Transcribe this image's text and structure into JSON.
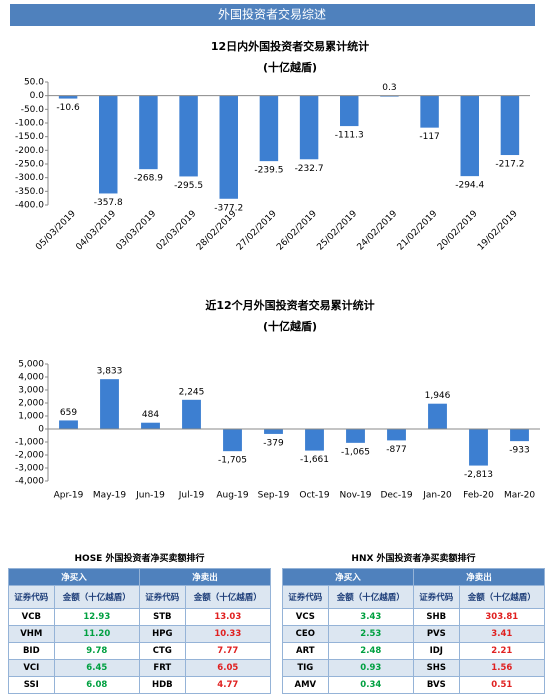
{
  "header": {
    "title": "外国投资者交易综述"
  },
  "chart_data": [
    {
      "type": "bar",
      "title": "12日内外国投资者交易累计统计",
      "subtitle": "(十亿越盾)",
      "categories": [
        "05/03/2019",
        "04/03/2019",
        "03/03/2019",
        "02/03/2019",
        "28/02/2019",
        "27/02/2019",
        "26/02/2019",
        "25/02/2019",
        "24/02/2019",
        "21/02/2019",
        "20/02/2019",
        "19/02/2019"
      ],
      "values": [
        -10.6,
        -357.8,
        -268.9,
        -295.5,
        -377.2,
        -239.5,
        -232.7,
        -111.3,
        0.3,
        -117.0,
        -294.4,
        -217.2
      ],
      "color": "#3d7fd1",
      "ylim": [
        -400,
        50
      ],
      "yticks": [
        {
          "value": 50,
          "label": "50.0"
        },
        {
          "value": 0,
          "label": "0.0"
        },
        {
          "value": -50,
          "label": "-50.0"
        },
        {
          "value": -100,
          "label": "-100.0"
        },
        {
          "value": -150,
          "label": "-150.0"
        },
        {
          "value": -200,
          "label": "-200.0"
        },
        {
          "value": -250,
          "label": "-250.0"
        },
        {
          "value": -300,
          "label": "-300.0"
        },
        {
          "value": -350,
          "label": "-350.0"
        },
        {
          "value": -400,
          "label": "-400.0"
        }
      ],
      "grid": false
    },
    {
      "type": "bar",
      "title": "近12个月外国投资者交易累计统计",
      "subtitle": "(十亿越盾)",
      "categories": [
        "Apr-19",
        "May-19",
        "Jun-19",
        "Jul-19",
        "Aug-19",
        "Sep-19",
        "Oct-19",
        "Nov-19",
        "Dec-19",
        "Jan-20",
        "Feb-20",
        "Mar-20"
      ],
      "values": [
        659,
        3833,
        484,
        2245,
        -1705,
        -379,
        -1661,
        -1065,
        -877,
        1946,
        -2813,
        -933
      ],
      "value_labels": [
        "659",
        "3,833",
        "484",
        "2,245",
        "-1,705",
        "-379",
        "-1,661",
        "-1,065",
        "-877",
        "1,946",
        "-2,813",
        "-933"
      ],
      "color": "#3d7fd1",
      "ylim": [
        -4000,
        5000
      ],
      "yticks": [
        {
          "value": 5000,
          "label": "5,000"
        },
        {
          "value": 4000,
          "label": "4,000"
        },
        {
          "value": 3000,
          "label": "3,000"
        },
        {
          "value": 2000,
          "label": "2,000"
        },
        {
          "value": 1000,
          "label": "1,000"
        },
        0,
        {
          "value": -1000,
          "label": "-1,000"
        },
        {
          "value": -2000,
          "label": "-2,000"
        },
        {
          "value": -3000,
          "label": "-3,000"
        },
        {
          "value": -4000,
          "label": "-4,000"
        }
      ],
      "grid": false
    }
  ],
  "tables": [
    {
      "title": "HOSE 外国投资者净买卖额排行",
      "buy_header": "净买入",
      "sell_header": "净卖出",
      "columns": [
        "证券代码",
        "金额（十亿越盾）",
        "证券代码",
        "金额（十亿越盾）"
      ],
      "rows": [
        [
          "VCB",
          "12.93",
          "STB",
          "13.03"
        ],
        [
          "VHM",
          "11.20",
          "HPG",
          "10.33"
        ],
        [
          "BID",
          "9.78",
          "CTG",
          "7.77"
        ],
        [
          "VCI",
          "6.45",
          "FRT",
          "6.05"
        ],
        [
          "SSI",
          "6.08",
          "HDB",
          "4.77"
        ]
      ]
    },
    {
      "title": "HNX 外国投资者净买卖额排行",
      "buy_header": "净买入",
      "sell_header": "净卖出",
      "columns": [
        "证券代码",
        "金额（十亿越盾）",
        "证券代码",
        "金额（十亿越盾）"
      ],
      "rows": [
        [
          "VCS",
          "3.43",
          "SHB",
          "303.81"
        ],
        [
          "CEO",
          "2.53",
          "PVS",
          "3.41"
        ],
        [
          "ART",
          "2.48",
          "IDJ",
          "2.21"
        ],
        [
          "TIG",
          "0.93",
          "SHS",
          "1.56"
        ],
        [
          "AMV",
          "0.34",
          "BVS",
          "0.51"
        ]
      ]
    }
  ]
}
